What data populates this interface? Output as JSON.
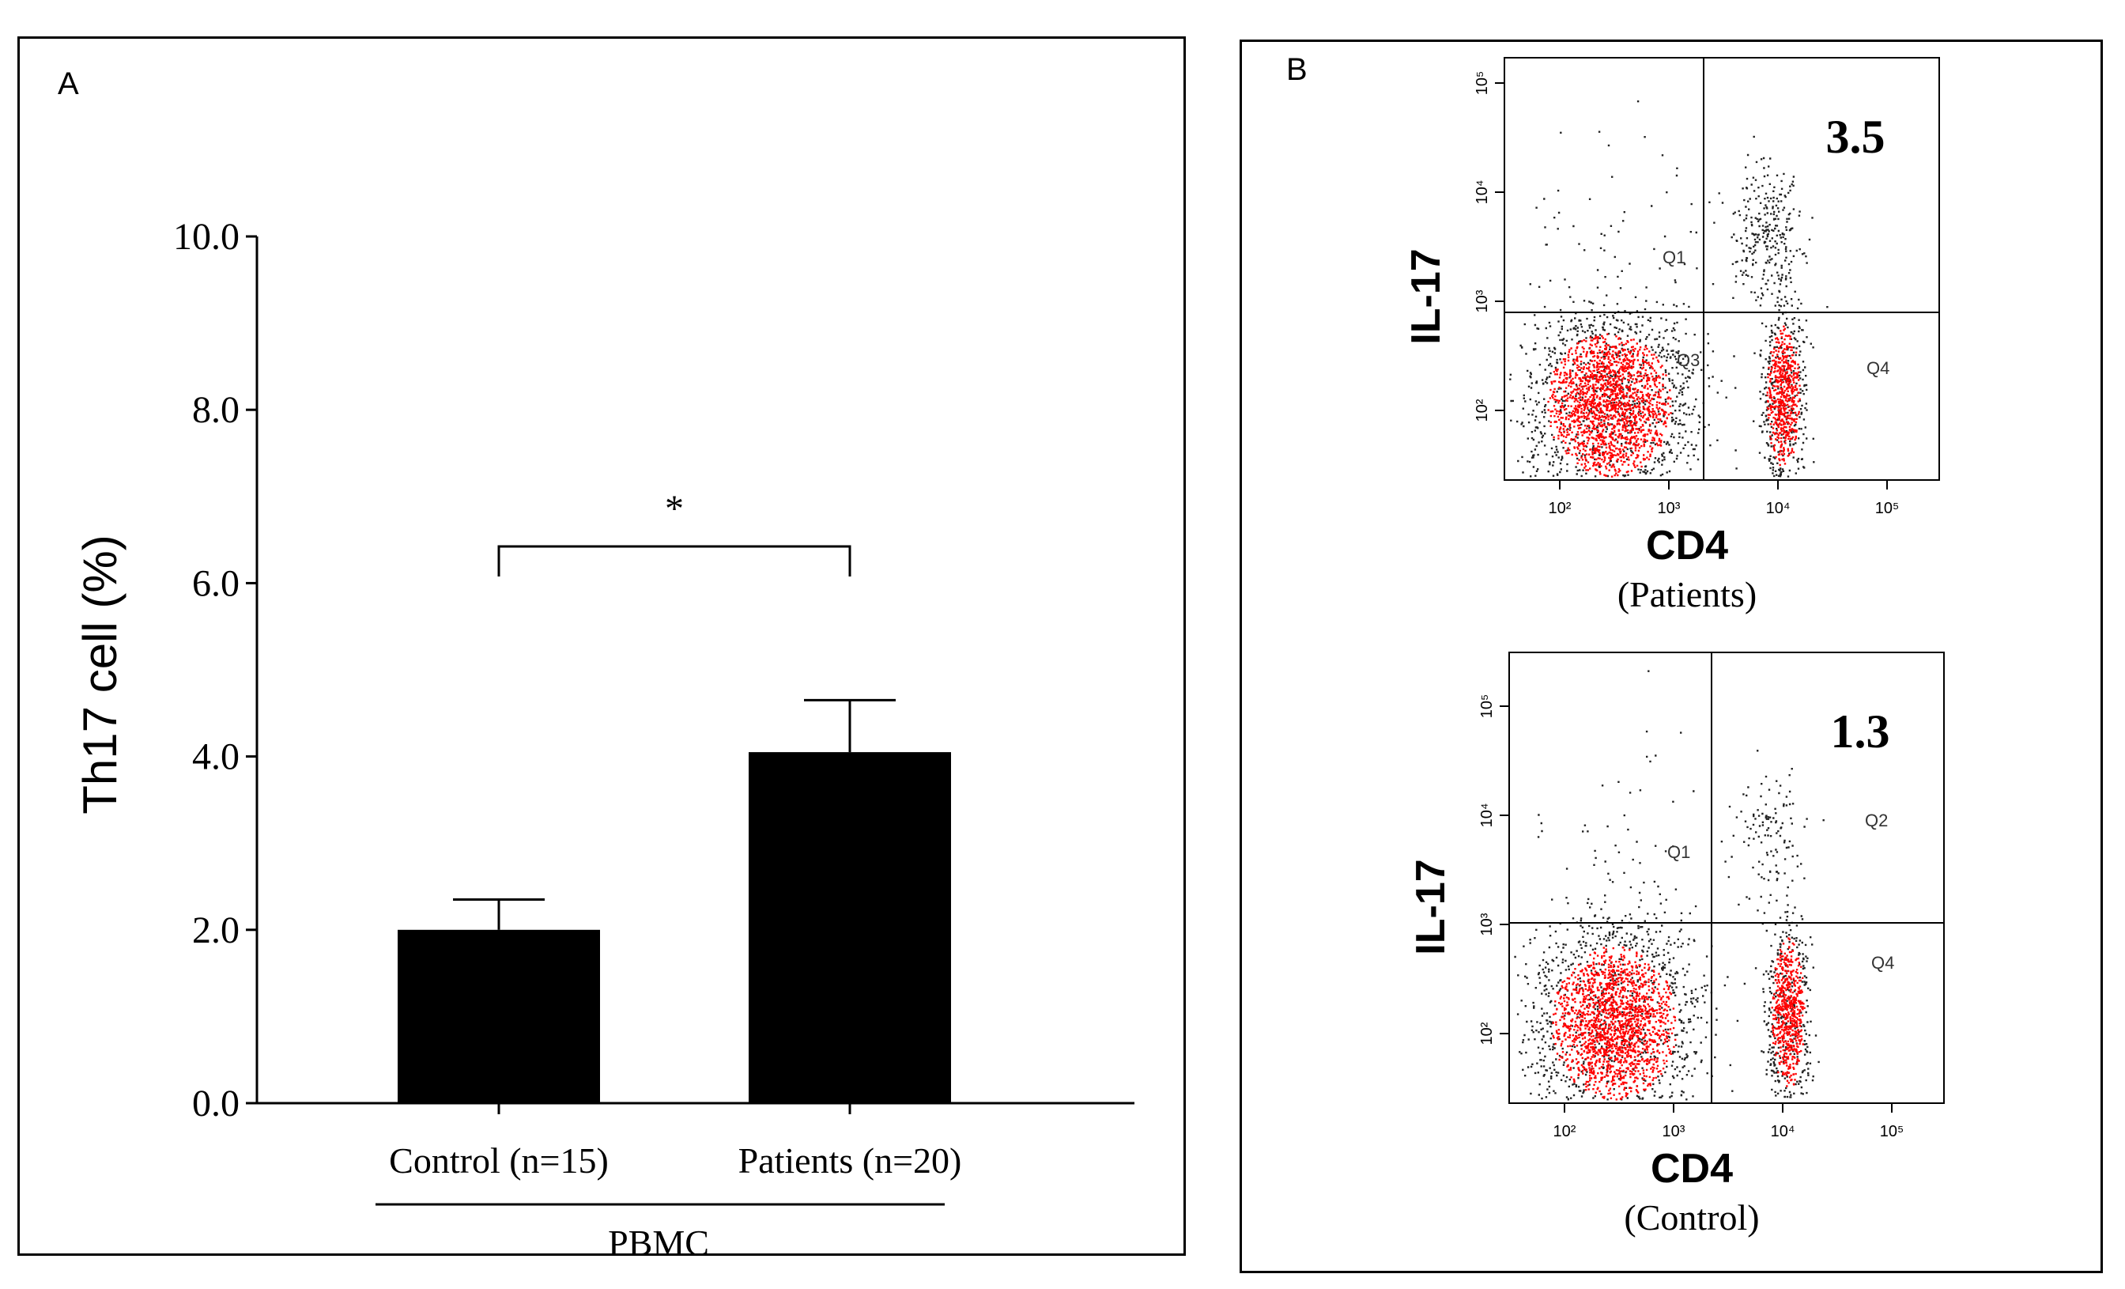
{
  "chart_data": [
    {
      "panel": "A",
      "type": "bar",
      "ylabel": "Th17 cell (%)",
      "ylim": [
        0,
        10
      ],
      "yticks": [
        "0.0",
        "2.0",
        "4.0",
        "6.0",
        "8.0",
        "10.0"
      ],
      "categories": [
        "Control (n=15)",
        "Patients (n=20)"
      ],
      "values": [
        2.0,
        4.05
      ],
      "errors": [
        0.35,
        0.6
      ],
      "group_label": "PBMC",
      "significance": "*",
      "bar_color": "#000000"
    },
    {
      "panel": "B",
      "type": "scatter",
      "plots": [
        {
          "xlabel": "CD4",
          "ylabel": "IL-17",
          "caption": "(Patients)",
          "percentage": "3.5",
          "quadrants": [
            "Q1",
            "Q3",
            "Q4"
          ],
          "x_ticks": [
            "10²",
            "10³",
            "10⁴",
            "10⁵"
          ],
          "y_ticks": [
            "10²",
            "10³",
            "10⁴",
            "10⁵"
          ]
        },
        {
          "xlabel": "CD4",
          "ylabel": "IL-17",
          "caption": "(Control)",
          "percentage": "1.3",
          "quadrants": [
            "Q1",
            "Q2",
            "Q4"
          ],
          "x_ticks": [
            "10²",
            "10³",
            "10⁴",
            "10⁵"
          ],
          "y_ticks": [
            "10²",
            "10³",
            "10⁴",
            "10⁵"
          ]
        }
      ],
      "dot_color": "#ff0000"
    }
  ],
  "panels": {
    "a_letter": "A",
    "b_letter": "B"
  }
}
